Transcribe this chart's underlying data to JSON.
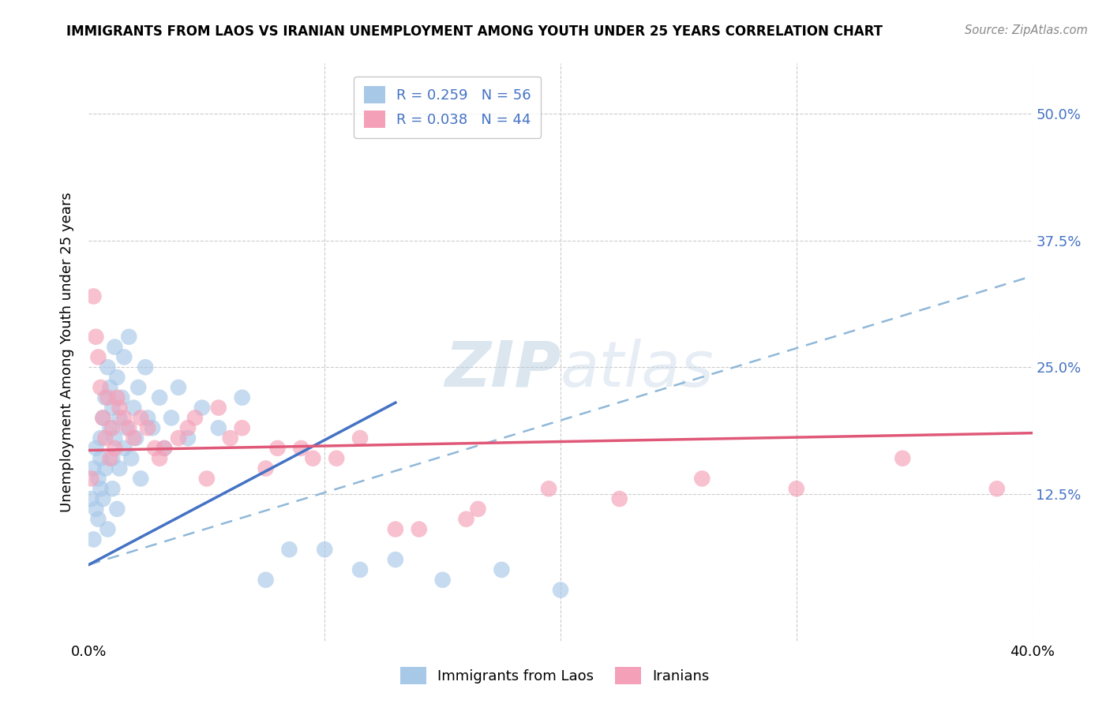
{
  "title": "IMMIGRANTS FROM LAOS VS IRANIAN UNEMPLOYMENT AMONG YOUTH UNDER 25 YEARS CORRELATION CHART",
  "source": "Source: ZipAtlas.com",
  "ylabel": "Unemployment Among Youth under 25 years",
  "ytick_labels": [
    "",
    "12.5%",
    "25.0%",
    "37.5%",
    "50.0%"
  ],
  "xlim": [
    0.0,
    0.4
  ],
  "ylim": [
    -0.02,
    0.55
  ],
  "legend_r1": "R = 0.259",
  "legend_n1": "N = 56",
  "legend_r2": "R = 0.038",
  "legend_n2": "N = 44",
  "color_blue": "#A8C8E8",
  "color_pink": "#F4A0B8",
  "color_blue_line": "#4472C4",
  "color_pink_line": "#E05878",
  "color_dashed": "#90B8D8",
  "watermark": "ZIPatlas",
  "blue_scatter_x": [
    0.001,
    0.002,
    0.002,
    0.003,
    0.003,
    0.004,
    0.004,
    0.005,
    0.005,
    0.005,
    0.006,
    0.006,
    0.007,
    0.007,
    0.008,
    0.008,
    0.009,
    0.009,
    0.01,
    0.01,
    0.01,
    0.011,
    0.011,
    0.012,
    0.012,
    0.013,
    0.013,
    0.014,
    0.015,
    0.015,
    0.016,
    0.017,
    0.018,
    0.019,
    0.02,
    0.021,
    0.022,
    0.024,
    0.025,
    0.027,
    0.03,
    0.032,
    0.035,
    0.038,
    0.042,
    0.048,
    0.055,
    0.065,
    0.075,
    0.085,
    0.1,
    0.115,
    0.13,
    0.15,
    0.175,
    0.2
  ],
  "blue_scatter_y": [
    0.12,
    0.08,
    0.15,
    0.11,
    0.17,
    0.14,
    0.1,
    0.18,
    0.13,
    0.16,
    0.2,
    0.12,
    0.22,
    0.15,
    0.25,
    0.09,
    0.19,
    0.23,
    0.16,
    0.21,
    0.13,
    0.27,
    0.18,
    0.24,
    0.11,
    0.2,
    0.15,
    0.22,
    0.17,
    0.26,
    0.19,
    0.28,
    0.16,
    0.21,
    0.18,
    0.23,
    0.14,
    0.25,
    0.2,
    0.19,
    0.22,
    0.17,
    0.2,
    0.23,
    0.18,
    0.21,
    0.19,
    0.22,
    0.04,
    0.07,
    0.07,
    0.05,
    0.06,
    0.04,
    0.05,
    0.03
  ],
  "pink_scatter_x": [
    0.001,
    0.002,
    0.003,
    0.004,
    0.005,
    0.006,
    0.007,
    0.008,
    0.009,
    0.01,
    0.011,
    0.012,
    0.013,
    0.015,
    0.017,
    0.019,
    0.022,
    0.025,
    0.028,
    0.032,
    0.038,
    0.045,
    0.055,
    0.065,
    0.08,
    0.095,
    0.115,
    0.14,
    0.165,
    0.195,
    0.225,
    0.26,
    0.3,
    0.345,
    0.385,
    0.03,
    0.042,
    0.05,
    0.06,
    0.075,
    0.09,
    0.105,
    0.13,
    0.16
  ],
  "pink_scatter_y": [
    0.14,
    0.32,
    0.28,
    0.26,
    0.23,
    0.2,
    0.18,
    0.22,
    0.16,
    0.19,
    0.17,
    0.22,
    0.21,
    0.2,
    0.19,
    0.18,
    0.2,
    0.19,
    0.17,
    0.17,
    0.18,
    0.2,
    0.21,
    0.19,
    0.17,
    0.16,
    0.18,
    0.09,
    0.11,
    0.13,
    0.12,
    0.14,
    0.13,
    0.16,
    0.13,
    0.16,
    0.19,
    0.14,
    0.18,
    0.15,
    0.17,
    0.16,
    0.09,
    0.1
  ],
  "blue_line_x0": 0.0,
  "blue_line_y0": 0.055,
  "blue_line_x1": 0.13,
  "blue_line_y1": 0.215,
  "pink_line_x0": 0.0,
  "pink_line_y0": 0.168,
  "pink_line_x1": 0.4,
  "pink_line_y1": 0.185,
  "dash_line_x0": 0.0,
  "dash_line_y0": 0.055,
  "dash_line_x1": 0.4,
  "dash_line_y1": 0.34
}
